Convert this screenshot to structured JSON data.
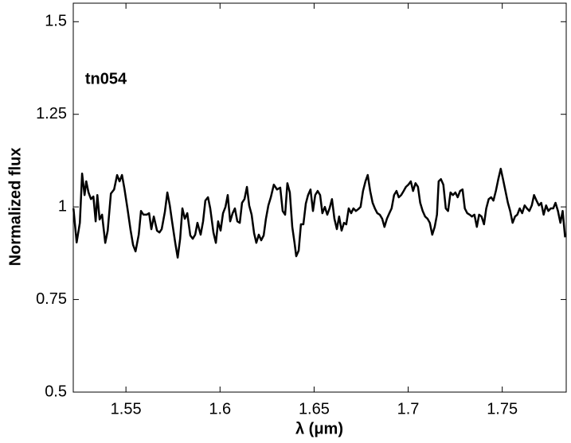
{
  "chart_data": {
    "type": "line",
    "annotation": "tn054",
    "xlabel": "λ (μm)",
    "ylabel": "Normalized flux",
    "color": "#000000",
    "xlim": [
      1.522,
      1.784
    ],
    "ylim": [
      0.5,
      1.55
    ],
    "xticks": [
      1.55,
      1.6,
      1.65,
      1.7,
      1.75
    ],
    "yticks": [
      0.5,
      0.75,
      1,
      1.25,
      1.5
    ],
    "x": [
      1.5221,
      1.5238,
      1.5255,
      1.5267,
      1.528,
      1.5289,
      1.5301,
      1.5314,
      1.5327,
      1.5339,
      1.5348,
      1.536,
      1.5373,
      1.539,
      1.5403,
      1.542,
      1.5437,
      1.5453,
      1.5466,
      1.5479,
      1.5492,
      1.5508,
      1.5525,
      1.5538,
      1.5551,
      1.5568,
      1.558,
      1.5593,
      1.561,
      1.5623,
      1.5635,
      1.5648,
      1.5665,
      1.5678,
      1.569,
      1.5707,
      1.572,
      1.5733,
      1.5745,
      1.5762,
      1.5775,
      1.5788,
      1.58,
      1.5813,
      1.5826,
      1.5842,
      1.5855,
      1.5868,
      1.588,
      1.5897,
      1.591,
      1.5922,
      1.5936,
      1.5948,
      1.5965,
      1.5978,
      1.599,
      1.6003,
      1.6016,
      1.6029,
      1.6041,
      1.6054,
      1.6067,
      1.6079,
      1.6092,
      1.6105,
      1.6117,
      1.613,
      1.6143,
      1.6155,
      1.6168,
      1.6181,
      1.6193,
      1.6206,
      1.6219,
      1.6232,
      1.6244,
      1.6257,
      1.627,
      1.6286,
      1.6303,
      1.632,
      1.6333,
      1.6346,
      1.6358,
      1.6371,
      1.6384,
      1.6396,
      1.6405,
      1.6418,
      1.643,
      1.6443,
      1.6456,
      1.6468,
      1.6481,
      1.6494,
      1.6506,
      1.6519,
      1.6532,
      1.6544,
      1.6557,
      1.657,
      1.6582,
      1.6595,
      1.6608,
      1.6621,
      1.6633,
      1.6646,
      1.6659,
      1.6671,
      1.6684,
      1.6697,
      1.6709,
      1.6722,
      1.6735,
      1.6747,
      1.676,
      1.6773,
      1.6785,
      1.6798,
      1.6811,
      1.6823,
      1.6836,
      1.6849,
      1.6862,
      1.6874,
      1.6887,
      1.69,
      1.6912,
      1.6925,
      1.6938,
      1.695,
      1.6963,
      1.6976,
      1.6988,
      1.7001,
      1.7014,
      1.7026,
      1.7039,
      1.7052,
      1.7064,
      1.7077,
      1.709,
      1.7103,
      1.7115,
      1.7128,
      1.7141,
      1.7153,
      1.7162,
      1.7174,
      1.7187,
      1.72,
      1.7212,
      1.7225,
      1.7238,
      1.7251,
      1.7263,
      1.7276,
      1.7289,
      1.7301,
      1.7314,
      1.7327,
      1.7339,
      1.7352,
      1.7365,
      1.7377,
      1.739,
      1.7403,
      1.7415,
      1.7428,
      1.7441,
      1.7453,
      1.7466,
      1.7479,
      1.7492,
      1.7504,
      1.7517,
      1.753,
      1.7542,
      1.7555,
      1.7568,
      1.758,
      1.7593,
      1.7606,
      1.7619,
      1.7631,
      1.7644,
      1.7657,
      1.7669,
      1.7682,
      1.7695,
      1.7707,
      1.772,
      1.7733,
      1.7745,
      1.7758,
      1.7771,
      1.7783,
      1.7796,
      1.7809,
      1.7821,
      1.7834
    ],
    "values": [
      0.996,
      0.904,
      0.957,
      1.09,
      1.032,
      1.069,
      1.039,
      1.021,
      1.028,
      0.961,
      1.032,
      0.966,
      0.979,
      0.903,
      0.936,
      1.036,
      1.047,
      1.086,
      1.069,
      1.086,
      1.049,
      0.996,
      0.936,
      0.897,
      0.88,
      0.925,
      0.989,
      0.979,
      0.979,
      0.983,
      0.94,
      0.974,
      0.936,
      0.931,
      0.94,
      0.987,
      1.039,
      1.004,
      0.961,
      0.903,
      0.863,
      0.914,
      0.996,
      0.968,
      0.983,
      0.923,
      0.914,
      0.925,
      0.957,
      0.925,
      0.961,
      1.017,
      1.026,
      0.996,
      0.931,
      0.903,
      0.961,
      0.936,
      0.983,
      1.0,
      1.032,
      0.961,
      0.983,
      0.996,
      0.961,
      0.957,
      1.011,
      1.021,
      1.054,
      1.004,
      0.979,
      0.929,
      0.903,
      0.925,
      0.91,
      0.923,
      0.968,
      1.004,
      1.026,
      1.06,
      1.047,
      1.052,
      0.989,
      0.979,
      1.064,
      1.039,
      0.946,
      0.903,
      0.867,
      0.882,
      0.953,
      0.953,
      1.009,
      1.032,
      1.047,
      0.989,
      1.032,
      1.043,
      1.032,
      0.983,
      1.0,
      0.979,
      0.996,
      1.021,
      0.968,
      0.94,
      0.974,
      0.936,
      0.957,
      0.953,
      0.996,
      0.983,
      0.996,
      0.989,
      0.994,
      1.0,
      1.043,
      1.069,
      1.086,
      1.043,
      1.011,
      0.996,
      0.983,
      0.979,
      0.968,
      0.946,
      0.968,
      0.983,
      0.996,
      1.032,
      1.043,
      1.026,
      1.032,
      1.043,
      1.054,
      1.06,
      1.069,
      1.043,
      1.064,
      1.054,
      1.011,
      0.989,
      0.974,
      0.968,
      0.957,
      0.925,
      0.946,
      0.979,
      1.069,
      1.075,
      1.06,
      0.996,
      0.989,
      1.039,
      1.032,
      1.039,
      1.026,
      1.043,
      1.047,
      0.996,
      0.983,
      0.979,
      0.974,
      0.979,
      0.946,
      0.979,
      0.974,
      0.953,
      0.996,
      1.021,
      1.026,
      1.017,
      1.043,
      1.075,
      1.103,
      1.075,
      1.043,
      1.011,
      0.989,
      0.957,
      0.974,
      0.979,
      0.996,
      0.983,
      1.004,
      0.996,
      0.989,
      1.004,
      1.032,
      1.017,
      1.004,
      1.011,
      0.979,
      1.004,
      0.989,
      0.996,
      0.996,
      1.011,
      0.989,
      0.957,
      0.989,
      0.918
    ]
  }
}
